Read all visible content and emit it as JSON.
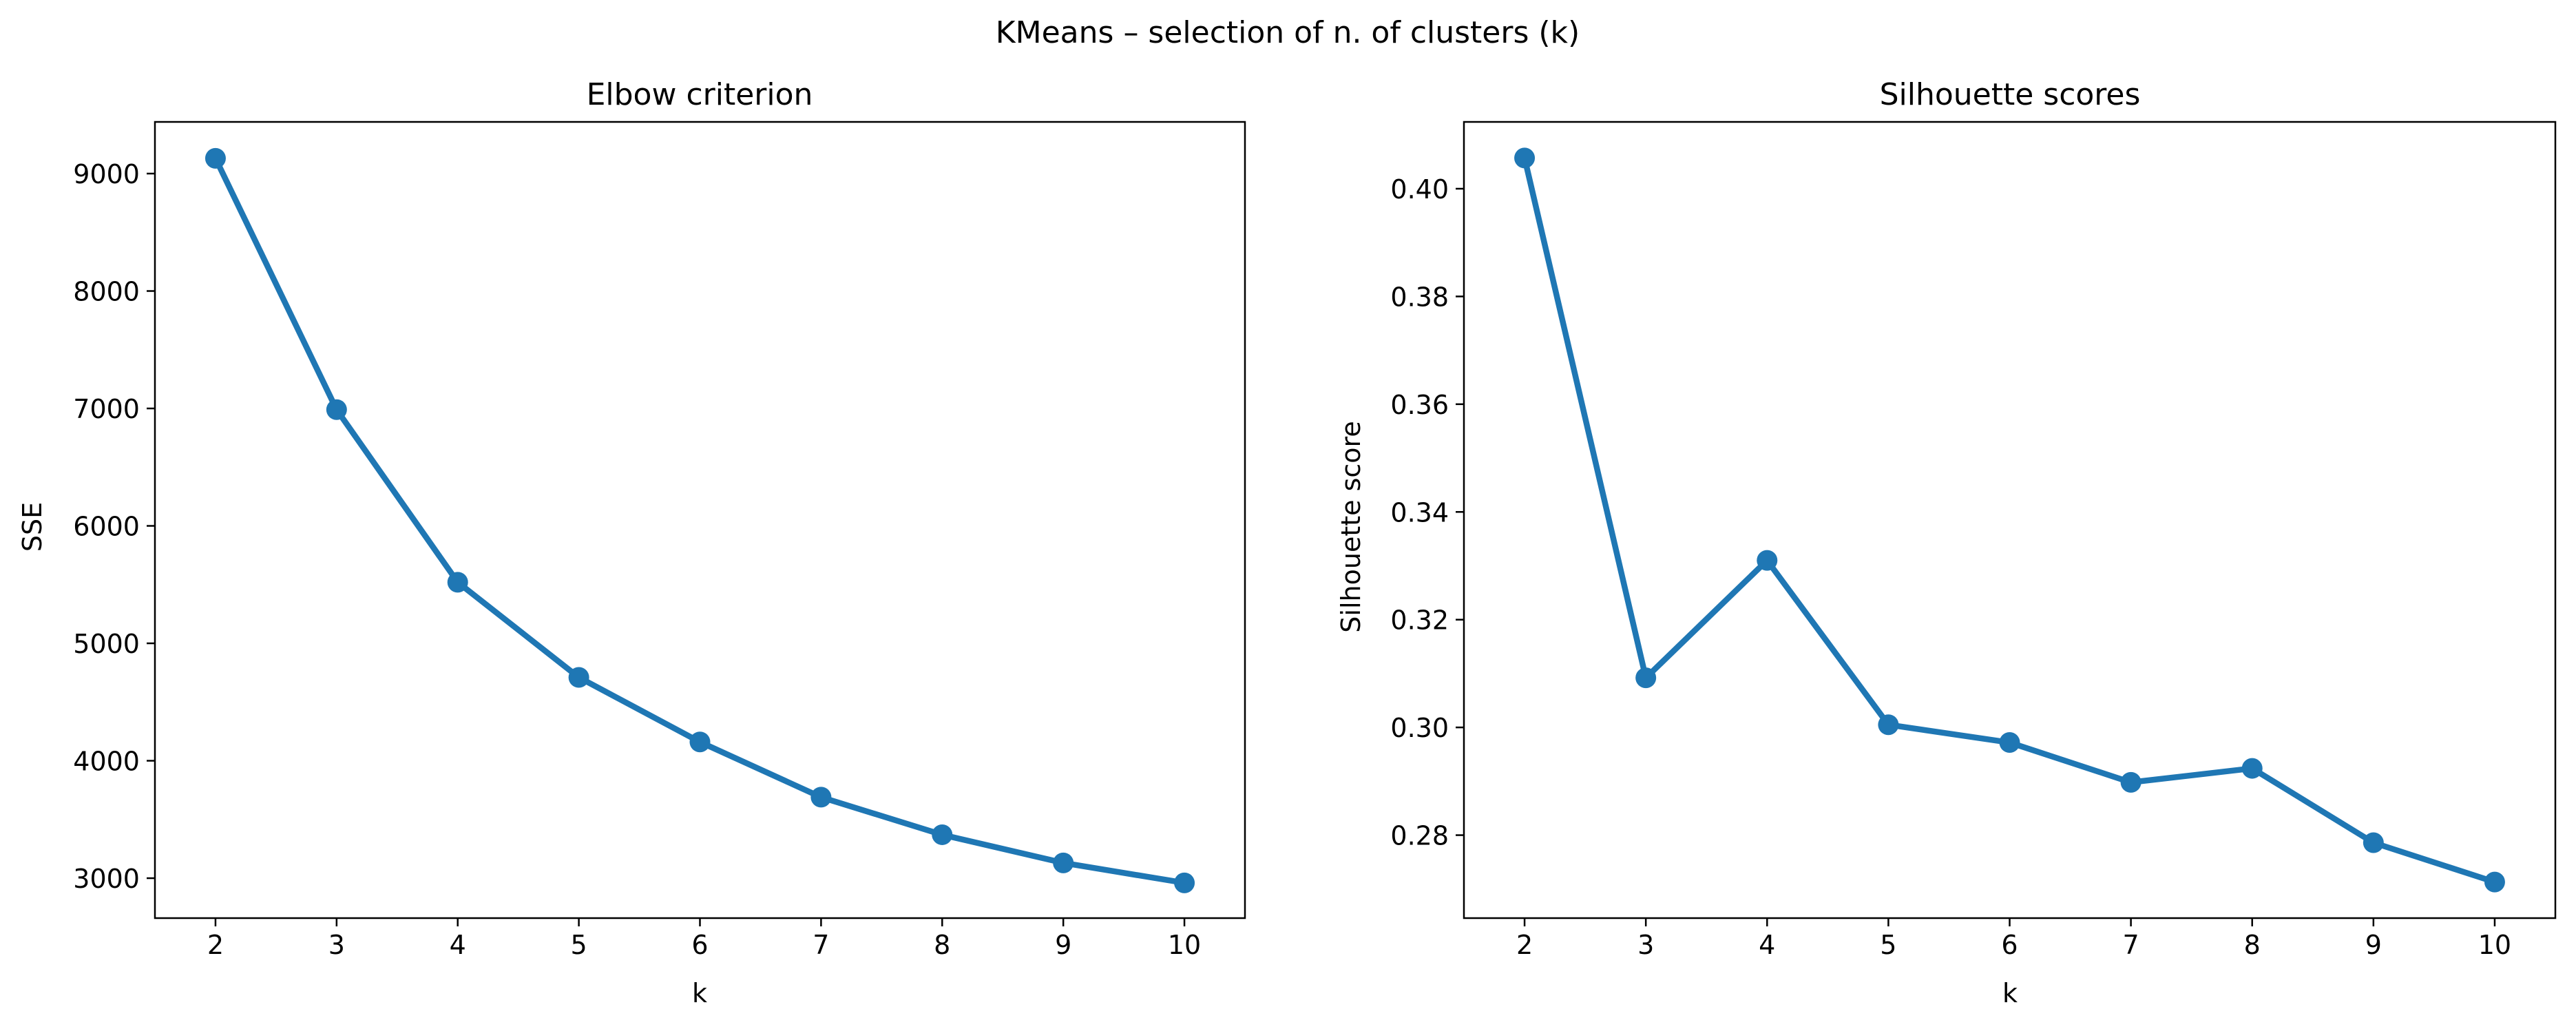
{
  "figure": {
    "suptitle": "KMeans – selection of n. of clusters (k)"
  },
  "colors": {
    "series": "#1f77b4",
    "axes": "#000000",
    "background": "#ffffff"
  },
  "chart_data": [
    {
      "type": "line",
      "title": "Elbow criterion",
      "xlabel": "k",
      "ylabel": "SSE",
      "x": [
        2,
        3,
        4,
        5,
        6,
        7,
        8,
        9,
        10
      ],
      "series": [
        {
          "values": [
            9130,
            6990,
            5520,
            4710,
            4160,
            3690,
            3370,
            3130,
            2960
          ],
          "marker": "circle"
        }
      ],
      "xlim": [
        1.5,
        10.5
      ],
      "ylim": [
        2660,
        9440
      ],
      "xticks": [
        2,
        3,
        4,
        5,
        6,
        7,
        8,
        9,
        10
      ],
      "yticks": [
        3000,
        4000,
        5000,
        6000,
        7000,
        8000,
        9000
      ],
      "grid": false,
      "legend": "none"
    },
    {
      "type": "line",
      "title": "Silhouette scores",
      "xlabel": "k",
      "ylabel": "Silhouette score",
      "x": [
        2,
        3,
        4,
        5,
        6,
        7,
        8,
        9,
        10
      ],
      "series": [
        {
          "values": [
            0.4057,
            0.3092,
            0.331,
            0.3005,
            0.2972,
            0.2898,
            0.2924,
            0.2786,
            0.2713
          ],
          "marker": "circle"
        }
      ],
      "xlim": [
        1.5,
        10.5
      ],
      "ylim": [
        0.2646,
        0.4124
      ],
      "xticks": [
        2,
        3,
        4,
        5,
        6,
        7,
        8,
        9,
        10
      ],
      "yticks": [
        "0.28",
        "0.30",
        "0.32",
        "0.34",
        "0.36",
        "0.38",
        "0.40"
      ],
      "grid": false,
      "legend": "none"
    }
  ]
}
